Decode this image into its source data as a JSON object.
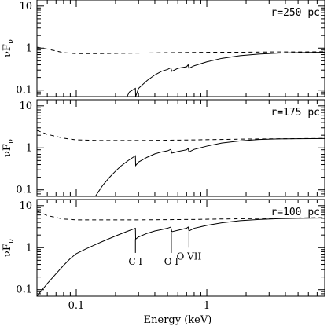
{
  "chart_data": {
    "type": "line",
    "xlabel": "Energy (keV)",
    "ylabel": "νFν",
    "ylabel_main": "νF",
    "ylabel_sub": "ν",
    "xscale": "log",
    "yscale": "log",
    "xlim": [
      0.05,
      8
    ],
    "x_ticks": [
      0.1,
      1
    ],
    "x_tick_labels": [
      "0.1",
      "1"
    ],
    "panels": [
      {
        "label": "r=250 pc",
        "ylim": [
          0.07,
          14
        ],
        "y_ticks": [
          0.1,
          1,
          10
        ],
        "y_tick_labels": [
          "0.1",
          "1",
          "10"
        ],
        "series": [
          {
            "style": "dashed",
            "x": [
              0.05,
              0.06,
              0.08,
              0.1,
              0.15,
              0.2,
              0.3,
              0.5,
              0.8,
              1.2,
              2,
              3,
              5,
              8
            ],
            "y": [
              1.05,
              0.95,
              0.78,
              0.74,
              0.74,
              0.75,
              0.76,
              0.78,
              0.79,
              0.8,
              0.8,
              0.81,
              0.81,
              0.82
            ]
          },
          {
            "style": "solid",
            "x": [
              0.245,
              0.255,
              0.27,
              0.284,
              0.285,
              0.3,
              0.35,
              0.4,
              0.45,
              0.5,
              0.53,
              0.54,
              0.6,
              0.7,
              0.72,
              0.73,
              0.8,
              1,
              1.3,
              1.8,
              2.5,
              3.5,
              5,
              8
            ],
            "y": [
              0.07,
              0.09,
              0.1,
              0.11,
              0.07,
              0.11,
              0.17,
              0.23,
              0.28,
              0.31,
              0.34,
              0.28,
              0.33,
              0.36,
              0.4,
              0.33,
              0.38,
              0.47,
              0.57,
              0.66,
              0.72,
              0.76,
              0.78,
              0.8
            ]
          }
        ]
      },
      {
        "label": "r=175 pc",
        "ylim": [
          0.07,
          14
        ],
        "y_ticks": [
          0.1,
          1,
          10
        ],
        "y_tick_labels": [
          "0.1",
          "1",
          "10"
        ],
        "series": [
          {
            "style": "dashed",
            "x": [
              0.05,
              0.06,
              0.08,
              0.1,
              0.15,
              0.2,
              0.3,
              0.5,
              0.8,
              1.2,
              2,
              3,
              5,
              8
            ],
            "y": [
              2.6,
              2.1,
              1.7,
              1.55,
              1.5,
              1.5,
              1.5,
              1.52,
              1.55,
              1.58,
              1.62,
              1.64,
              1.66,
              1.68
            ]
          },
          {
            "style": "solid",
            "x": [
              0.14,
              0.16,
              0.18,
              0.2,
              0.22,
              0.25,
              0.284,
              0.285,
              0.3,
              0.35,
              0.4,
              0.45,
              0.5,
              0.53,
              0.54,
              0.6,
              0.7,
              0.72,
              0.73,
              0.8,
              1,
              1.3,
              1.8,
              2.5,
              3.5,
              5,
              8
            ],
            "y": [
              0.07,
              0.13,
              0.2,
              0.28,
              0.37,
              0.5,
              0.65,
              0.38,
              0.46,
              0.6,
              0.72,
              0.8,
              0.85,
              0.92,
              0.75,
              0.82,
              0.9,
              0.97,
              0.8,
              0.92,
              1.1,
              1.3,
              1.47,
              1.58,
              1.63,
              1.65,
              1.67
            ]
          }
        ]
      },
      {
        "label": "r=100 pc",
        "ylim": [
          0.07,
          14
        ],
        "y_ticks": [
          0.1,
          1,
          10
        ],
        "y_tick_labels": [
          "0.1",
          "1",
          "10"
        ],
        "series": [
          {
            "style": "dashed",
            "x": [
              0.05,
              0.06,
              0.08,
              0.1,
              0.15,
              0.2,
              0.3,
              0.5,
              0.8,
              1.2,
              2,
              3,
              5,
              8
            ],
            "y": [
              7.5,
              5.8,
              4.8,
              4.6,
              4.6,
              4.6,
              4.6,
              4.65,
              4.7,
              4.8,
              4.9,
              5.0,
              5.1,
              5.2
            ]
          },
          {
            "style": "solid",
            "x": [
              0.05,
              0.055,
              0.06,
              0.07,
              0.08,
              0.09,
              0.1,
              0.12,
              0.15,
              0.2,
              0.25,
              0.284,
              0.285,
              0.3,
              0.35,
              0.4,
              0.45,
              0.5,
              0.53,
              0.54,
              0.6,
              0.7,
              0.72,
              0.73,
              0.8,
              1,
              1.3,
              1.8,
              2.5,
              3.5,
              5,
              8
            ],
            "y": [
              0.07,
              0.1,
              0.14,
              0.24,
              0.38,
              0.55,
              0.72,
              0.95,
              1.3,
              1.9,
              2.5,
              2.9,
              1.6,
              1.8,
              2.2,
              2.5,
              2.7,
              2.9,
              3.1,
              2.4,
              2.6,
              2.9,
              3.1,
              2.5,
              2.9,
              3.4,
              3.9,
              4.4,
              4.7,
              4.9,
              5.0,
              5.1
            ]
          }
        ],
        "annotations": [
          {
            "text": "C I",
            "x": 0.284,
            "y_top": 1.6,
            "y_bottom": 0.75
          },
          {
            "text": "O I",
            "x": 0.535,
            "y_top": 2.3,
            "y_bottom": 0.75
          },
          {
            "text": "O VII",
            "x": 0.73,
            "y_top": 2.4,
            "y_bottom": 1.0
          }
        ]
      }
    ]
  }
}
